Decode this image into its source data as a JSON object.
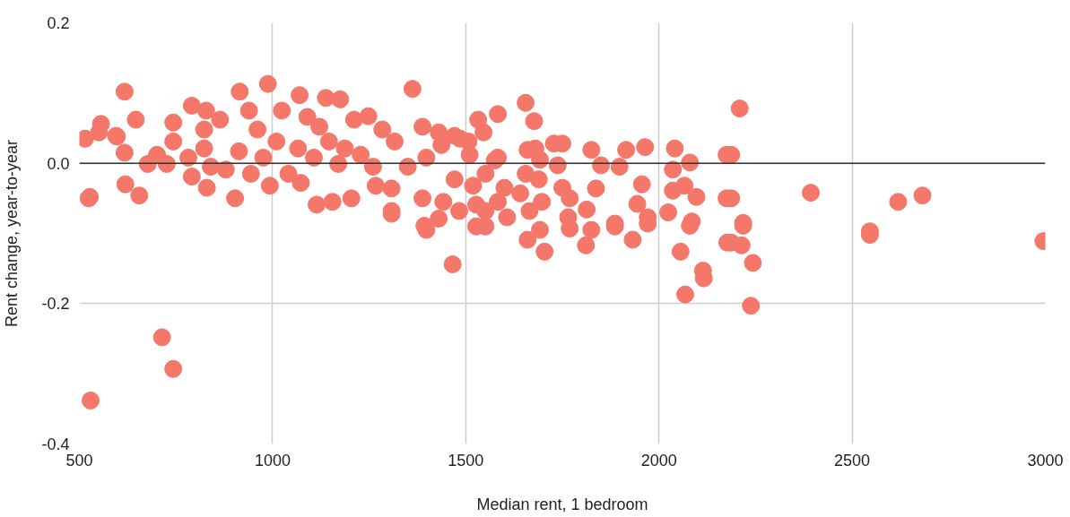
{
  "chart_data": {
    "type": "scatter",
    "xlabel": "Median rent, 1 bedroom",
    "ylabel": "Rent change, year-to-year",
    "xlim": [
      500,
      3000
    ],
    "xticks": [
      500,
      1000,
      1500,
      2000,
      2500,
      3000
    ],
    "ylim": [
      -0.4,
      0.2
    ],
    "yticks": [
      {
        "value": -0.4,
        "label": "-0.4"
      },
      {
        "value": -0.2,
        "label": "-0.2"
      },
      {
        "value": 0,
        "label": "0.0"
      },
      {
        "value": 0.2,
        "label": "0.2"
      }
    ],
    "grid": true,
    "marker": "circle",
    "ref_lines": [
      {
        "axis": "y",
        "value": 0,
        "color": "#333333"
      }
    ],
    "series": [
      {
        "color": "#f4776a",
        "x": [
          515,
          524,
          527,
          529,
          556,
          551,
          617,
          619,
          655,
          646,
          595,
          714,
          743,
          988,
          915,
          1070,
          1175,
          1138,
          1362,
          1655,
          1677,
          1583,
          1532,
          1546,
          1825,
          1750,
          1728,
          1915,
          1964,
          2041,
          2080,
          2036,
          1738,
          1850,
          1898,
          1837,
          1956,
          1944,
          1971,
          1886,
          2024,
          2036,
          2066,
          2097,
          2085,
          1769,
          1750,
          1813,
          1765,
          1665,
          1697,
          1680,
          1660,
          1692,
          1655,
          1689,
          1600,
          1641,
          1583,
          1527,
          1551,
          1607,
          1507,
          1485,
          1430,
          1388,
          1575,
          1551,
          2175,
          2175,
          2209,
          2187,
          2187,
          2218,
          2393,
          2619,
          2682,
          2546,
          2546,
          2995,
          2218,
          2187,
          2214,
          2243,
          2238,
          1466,
          1398,
          1527,
          1551,
          1660,
          1704,
          1692,
          1769,
          1811,
          1825,
          1886,
          1932,
          1971,
          2080,
          2056,
          2114,
          2116,
          2068,
          2177,
          1471,
          1437,
          1398,
          1350,
          1308,
          1308,
          1388,
          1442,
          1483,
          1430,
          1393,
          1471,
          1510,
          1519,
          1583,
          617,
          597,
          791,
          828,
          939,
          1211,
          1248,
          1284,
          1308,
          1114,
          1155,
          1204,
          903,
          830,
          791,
          677,
          701,
          743,
          743,
          864,
          1024,
          1090,
          1010,
          976,
          944,
          913,
          823,
          782,
          726,
          1066,
          1107,
          1041,
          993,
          1073,
          1170,
          1228,
          1260,
          1267,
          1146,
          1187,
          1316,
          879,
          840,
          961,
          823,
          1121
        ],
        "values": [
          0.035,
          -0.05,
          -0.048,
          -0.338,
          0.056,
          0.044,
          0.102,
          -0.03,
          -0.046,
          0.062,
          0.039,
          -0.248,
          -0.293,
          0.113,
          0.102,
          0.097,
          0.091,
          0.093,
          0.106,
          0.086,
          0.06,
          0.07,
          0.062,
          0.044,
          0.019,
          0.028,
          0.028,
          0.019,
          0.023,
          0.021,
          0.001,
          -0.009,
          -0.003,
          -0.003,
          -0.005,
          -0.036,
          -0.03,
          -0.058,
          -0.077,
          -0.086,
          -0.07,
          -0.039,
          -0.032,
          -0.048,
          -0.083,
          -0.05,
          -0.035,
          -0.066,
          -0.077,
          -0.068,
          -0.055,
          0.021,
          0.019,
          0.005,
          -0.015,
          -0.023,
          -0.035,
          -0.043,
          -0.055,
          -0.059,
          -0.068,
          -0.077,
          0.031,
          0.035,
          0.044,
          0.052,
          0.004,
          -0.015,
          0.012,
          -0.05,
          0.078,
          0.012,
          -0.05,
          -0.085,
          -0.042,
          -0.055,
          -0.046,
          -0.097,
          -0.102,
          -0.111,
          -0.089,
          -0.113,
          -0.117,
          -0.142,
          -0.203,
          -0.144,
          -0.095,
          -0.09,
          -0.09,
          -0.109,
          -0.126,
          -0.095,
          -0.093,
          -0.117,
          -0.095,
          -0.09,
          -0.109,
          -0.086,
          -0.089,
          -0.126,
          -0.153,
          -0.164,
          -0.187,
          -0.113,
          0.039,
          0.026,
          0.008,
          -0.005,
          -0.036,
          -0.068,
          -0.05,
          -0.055,
          -0.068,
          -0.079,
          -0.089,
          -0.023,
          0.012,
          -0.032,
          0.008,
          0.015,
          0.038,
          0.082,
          0.075,
          0.075,
          0.062,
          0.067,
          0.048,
          -0.072,
          -0.059,
          -0.055,
          -0.05,
          -0.05,
          -0.035,
          -0.019,
          -0.001,
          0.012,
          0.031,
          0.058,
          0.062,
          0.075,
          0.066,
          0.031,
          0.008,
          -0.015,
          0.017,
          0.021,
          0.008,
          -0.001,
          0.021,
          0.008,
          -0.015,
          -0.032,
          -0.028,
          -0.001,
          0.012,
          -0.005,
          -0.032,
          0.031,
          0.021,
          0.031,
          -0.009,
          -0.005,
          0.048,
          0.048,
          0.052
        ]
      }
    ]
  }
}
